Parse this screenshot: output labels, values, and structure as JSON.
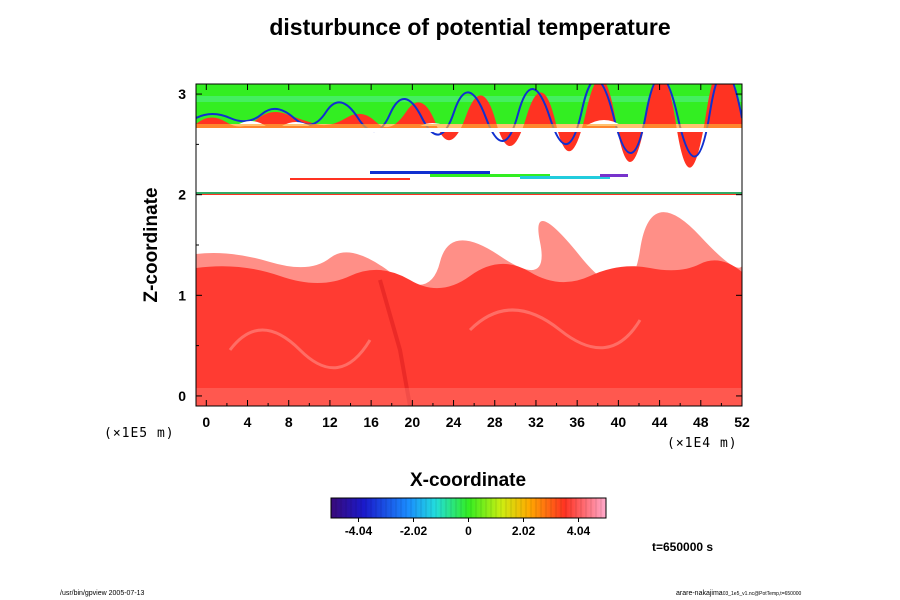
{
  "chart_data": {
    "type": "heatmap",
    "title": "disturbunce of potential temperature",
    "xlabel": "X-coordinate",
    "ylabel": "Z-coordinate",
    "x_scale_label": "(×1E4 m)",
    "z_scale_label": "(×1E5 m)",
    "x_ticks": [
      0,
      4,
      8,
      12,
      16,
      20,
      24,
      28,
      32,
      36,
      40,
      44,
      48,
      52
    ],
    "z_ticks": [
      0,
      1,
      2,
      3
    ],
    "xlim": [
      -1,
      52
    ],
    "zlim": [
      -0.1,
      3.1
    ],
    "colorbar": {
      "range": [
        -5.05,
        5.05
      ],
      "tick_values": [
        -4.04,
        -2.02,
        0,
        2.02,
        4.04
      ],
      "tick_labels": [
        "-4.04",
        "-2.02",
        "0",
        "2.02",
        "4.04"
      ]
    },
    "regions": [
      {
        "name": "upper layer",
        "z_range": [
          2.65,
          3.1
        ],
        "value_description": "green ≈ 1 to 2, wave crests red/blue"
      },
      {
        "name": "thin band",
        "z_range": [
          2.1,
          2.2
        ],
        "value_description": "mixed blue to red streaks"
      },
      {
        "name": "interface line",
        "z_range": [
          1.99,
          2.01
        ],
        "value_description": "thin multicolor line"
      },
      {
        "name": "lower mixed layer",
        "z_range": [
          -0.1,
          1.4
        ],
        "value_description": "red ≈ 4 to 5"
      }
    ]
  },
  "annotations": {
    "time": "t=650000 s",
    "footer_left": "/usr/bin/gpview 2005-07-13",
    "footer_right_main": "arare-nakajima",
    "footer_right_small": "03_1e5_v1.nc@PotTemp,t=650000"
  },
  "colors": {
    "red": "#ff3b32",
    "light_red": "#ff8f87",
    "green": "#33ee22",
    "blue": "#1030d0",
    "white": "#ffffff",
    "frame": "#000000"
  }
}
